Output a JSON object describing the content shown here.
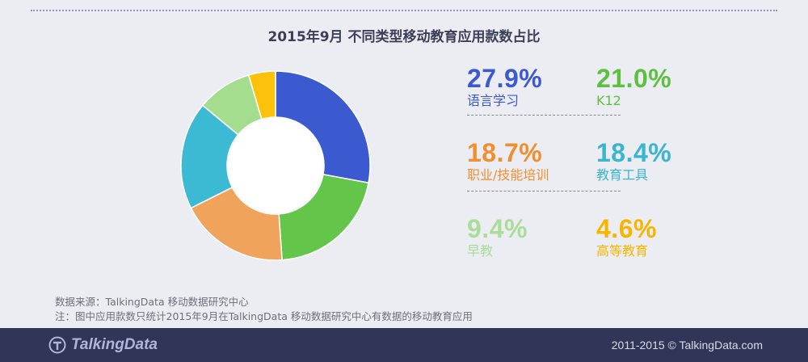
{
  "chart_data": {
    "type": "pie",
    "title": "2015年9月   不同类型移动教育应用款数占比",
    "hole": true,
    "categories": [
      "语言学习",
      "K12",
      "职业/技能培训",
      "教育工具",
      "早教",
      "高等教育"
    ],
    "values": [
      27.9,
      21.0,
      18.7,
      18.4,
      9.4,
      4.6
    ],
    "labels": [
      "27.9%",
      "21.0%",
      "18.7%",
      "18.4%",
      "9.4%",
      "4.6%"
    ],
    "colors": [
      "#3c5ad0",
      "#64c54b",
      "#f0a35a",
      "#3cbad4",
      "#a5dd8f",
      "#fcc10a"
    ],
    "label_colors": [
      "#3c5ad0",
      "#5ec040",
      "#ef8f2f",
      "#39b5cf",
      "#a9dd98",
      "#f7b500"
    ]
  },
  "source_line": "数据来源：TalkingData 移动数据研究中心",
  "note_line": "注：图中应用款数只统计2015年9月在TalkingData  移动数据研究中心有数据的移动教育应用",
  "footer": {
    "brand": "TalkingData",
    "copyright": "2011-2015 © TalkingData.com",
    "background": "#313659"
  }
}
